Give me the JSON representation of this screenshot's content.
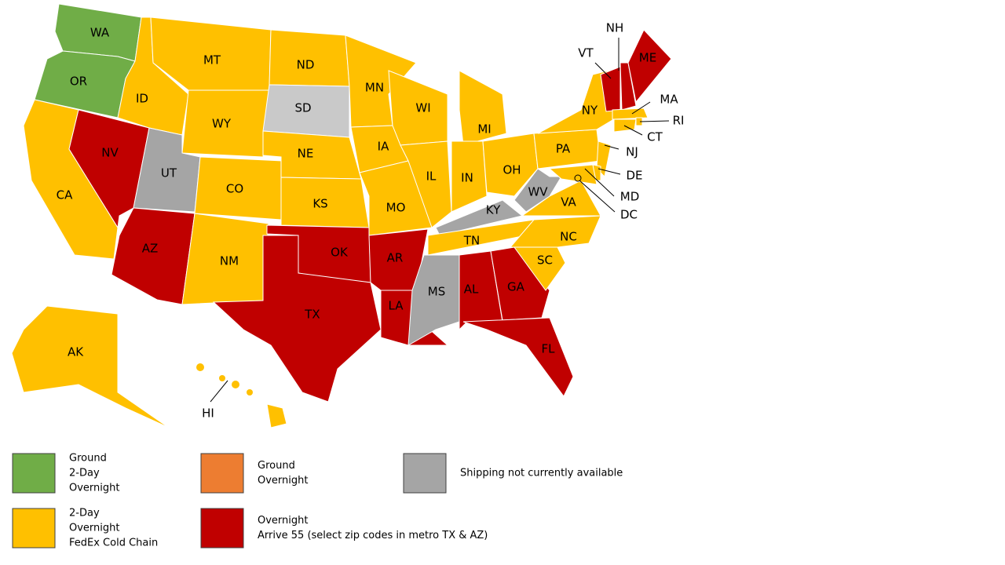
{
  "map": {
    "states": [
      {
        "label": "WA",
        "color": "#70ad47"
      },
      {
        "label": "OR",
        "color": "#70ad47"
      },
      {
        "label": "CA",
        "color": "#ffc000"
      },
      {
        "label": "NV",
        "color": "#c00000"
      },
      {
        "label": "ID",
        "color": "#ffc000"
      },
      {
        "label": "MT",
        "color": "#ffc000"
      },
      {
        "label": "WY",
        "color": "#ffc000"
      },
      {
        "label": "UT",
        "color": "#a5a5a5"
      },
      {
        "label": "CO",
        "color": "#ffc000"
      },
      {
        "label": "AZ",
        "color": "#c00000"
      },
      {
        "label": "NM",
        "color": "#ffc000"
      },
      {
        "label": "ND",
        "color": "#ffc000"
      },
      {
        "label": "SD",
        "color": "#c9c9c9"
      },
      {
        "label": "NE",
        "color": "#ffc000"
      },
      {
        "label": "KS",
        "color": "#ffc000"
      },
      {
        "label": "OK",
        "color": "#c00000"
      },
      {
        "label": "TX",
        "color": "#c00000"
      },
      {
        "label": "MN",
        "color": "#ffc000"
      },
      {
        "label": "IA",
        "color": "#ffc000"
      },
      {
        "label": "MO",
        "color": "#ffc000"
      },
      {
        "label": "AR",
        "color": "#c00000"
      },
      {
        "label": "LA",
        "color": "#c00000"
      },
      {
        "label": "WI",
        "color": "#ffc000"
      },
      {
        "label": "IL",
        "color": "#ffc000"
      },
      {
        "label": "MI",
        "color": "#ffc000"
      },
      {
        "label": "IN",
        "color": "#ffc000"
      },
      {
        "label": "OH",
        "color": "#ffc000"
      },
      {
        "label": "KY",
        "color": "#a5a5a5"
      },
      {
        "label": "TN",
        "color": "#ffc000"
      },
      {
        "label": "MS",
        "color": "#a5a5a5"
      },
      {
        "label": "AL",
        "color": "#c00000"
      },
      {
        "label": "GA",
        "color": "#c00000"
      },
      {
        "label": "FL",
        "color": "#c00000"
      },
      {
        "label": "SC",
        "color": "#ffc000"
      },
      {
        "label": "NC",
        "color": "#ffc000"
      },
      {
        "label": "VA",
        "color": "#ffc000"
      },
      {
        "label": "WV",
        "color": "#a5a5a5"
      },
      {
        "label": "PA",
        "color": "#ffc000"
      },
      {
        "label": "NY",
        "color": "#ffc000"
      },
      {
        "label": "VT",
        "color": "#c00000"
      },
      {
        "label": "NH",
        "color": "#c00000"
      },
      {
        "label": "ME",
        "color": "#c00000"
      },
      {
        "label": "MA",
        "color": "#ffc000"
      },
      {
        "label": "RI",
        "color": "#ffc000"
      },
      {
        "label": "CT",
        "color": "#ffc000"
      },
      {
        "label": "NJ",
        "color": "#ffc000"
      },
      {
        "label": "DE",
        "color": "#ffc000"
      },
      {
        "label": "MD",
        "color": "#ffc000"
      },
      {
        "label": "DC",
        "color": "#ffc000"
      },
      {
        "label": "AK",
        "color": "#ffc000"
      },
      {
        "label": "HI",
        "color": "#ffc000"
      }
    ],
    "legend": [
      {
        "color": "#70ad47",
        "lines": [
          "Ground",
          "2-Day",
          "Overnight"
        ]
      },
      {
        "color": "#ffc000",
        "lines": [
          "2-Day",
          "Overnight",
          "FedEx Cold Chain"
        ]
      },
      {
        "color": "#ed7d31",
        "lines": [
          "Ground",
          "Overnight"
        ]
      },
      {
        "color": "#c00000",
        "lines": [
          "Overnight",
          "Arrive 55 (select zip codes in metro TX & AZ)"
        ]
      },
      {
        "color": "#a5a5a5",
        "lines": [
          "Shipping not currently available"
        ]
      }
    ]
  }
}
